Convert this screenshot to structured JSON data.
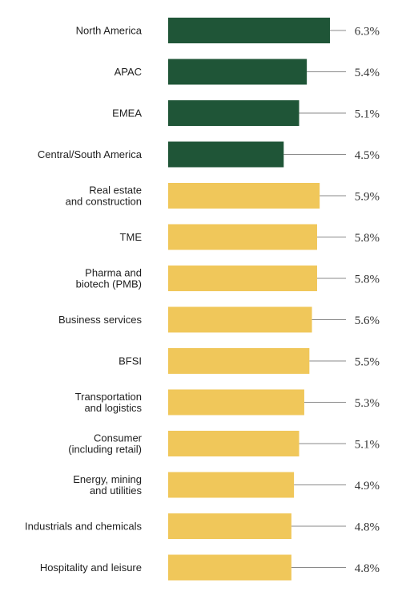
{
  "chart_data": {
    "type": "bar",
    "orientation": "horizontal",
    "categories": [
      [
        "North America"
      ],
      [
        "APAC"
      ],
      [
        "EMEA"
      ],
      [
        "Central/South America"
      ],
      [
        "Real estate",
        "and construction"
      ],
      [
        "TME"
      ],
      [
        "Pharma and",
        "biotech (PMB)"
      ],
      [
        "Business services"
      ],
      [
        "BFSI"
      ],
      [
        "Transportation",
        "and logistics"
      ],
      [
        "Consumer",
        "(including retail)"
      ],
      [
        "Energy, mining",
        "and utilities"
      ],
      [
        "Industrials and chemicals"
      ],
      [
        "Hospitality and leisure"
      ]
    ],
    "values": [
      6.3,
      5.4,
      5.1,
      4.5,
      5.9,
      5.8,
      5.8,
      5.6,
      5.5,
      5.3,
      5.1,
      4.9,
      4.8,
      4.8
    ],
    "value_labels": [
      "6.3%",
      "5.4%",
      "5.1%",
      "4.5%",
      "5.9%",
      "5.8%",
      "5.8%",
      "5.6%",
      "5.5%",
      "5.3%",
      "5.1%",
      "4.9%",
      "4.8%",
      "4.8%"
    ],
    "groups": [
      "region",
      "region",
      "region",
      "region",
      "sector",
      "sector",
      "sector",
      "sector",
      "sector",
      "sector",
      "sector",
      "sector",
      "sector",
      "sector"
    ],
    "group_colors": {
      "region": "#1f5537",
      "sector": "#f0c75a"
    },
    "xlim": [
      0,
      6.3
    ],
    "grid": false,
    "legend": false
  }
}
